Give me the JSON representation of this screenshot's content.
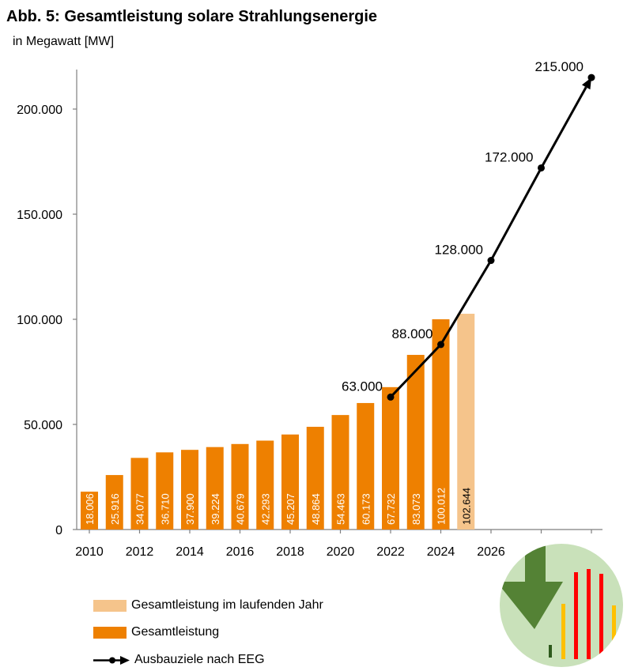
{
  "title": "Abb. 5: Gesamtleistung solare Strahlungsenergie",
  "subtitle": "in Megawatt [MW]",
  "colors": {
    "bar": "#EE8000",
    "bar_current": "#F5C48B",
    "bar_label": "#FFFFFF",
    "line": "#000000",
    "axis": "#7F7F7F",
    "badge_bg": "#C9E1BA",
    "badge_arrow": "#548235",
    "badge_red": "#FF0000",
    "badge_yellow": "#FFC000"
  },
  "legend": [
    {
      "label": "Gesamtleistung im laufenden Jahr",
      "type": "swatch",
      "color": "#F5C48B"
    },
    {
      "label": "Gesamtleistung",
      "type": "swatch",
      "color": "#EE8000"
    },
    {
      "label": "Ausbauziele nach EEG",
      "type": "line-arrow",
      "color": "#000000"
    }
  ],
  "badge_icon": "download-arrow-with-bars-icon",
  "chart_data": {
    "type": "bar",
    "ylim": [
      0,
      215000
    ],
    "yticks": [
      0,
      50000,
      100000,
      150000,
      200000
    ],
    "ytick_labels": [
      "0",
      "50.000",
      "100.000",
      "150.000",
      "200.000"
    ],
    "xlim": [
      2010,
      2030
    ],
    "xticks": [
      2010,
      2012,
      2014,
      2016,
      2018,
      2020,
      2022,
      2024,
      2026,
      2028,
      2030
    ],
    "xtick_labels": [
      "2010",
      "2012",
      "2014",
      "2016",
      "2018",
      "2020",
      "2022",
      "2024",
      "2026",
      "",
      ""
    ],
    "series": [
      {
        "name": "Gesamtleistung",
        "x": [
          2010,
          2011,
          2012,
          2013,
          2014,
          2015,
          2016,
          2017,
          2018,
          2019,
          2020,
          2021,
          2022,
          2023,
          2024
        ],
        "values": [
          18006,
          25916,
          34077,
          36710,
          37900,
          39224,
          40679,
          42293,
          45207,
          48864,
          54463,
          60173,
          67732,
          83073,
          100012
        ],
        "labels": [
          "18.006",
          "25.916",
          "34.077",
          "36.710",
          "37.900",
          "39.224",
          "40.679",
          "42.293",
          "45.207",
          "48.864",
          "54.463",
          "60.173",
          "67.732",
          "83.073",
          "100.012"
        ]
      },
      {
        "name": "Gesamtleistung im laufenden Jahr",
        "x": [
          2025
        ],
        "values": [
          102644
        ],
        "labels": [
          "102.644"
        ]
      },
      {
        "name": "Ausbauziele nach EEG",
        "type": "line",
        "x": [
          2022,
          2024,
          2026,
          2028,
          2030
        ],
        "values": [
          63000,
          88000,
          128000,
          172000,
          215000
        ],
        "labels": [
          "63.000",
          "88.000",
          "128.000",
          "172.000",
          "215.000"
        ]
      }
    ]
  }
}
